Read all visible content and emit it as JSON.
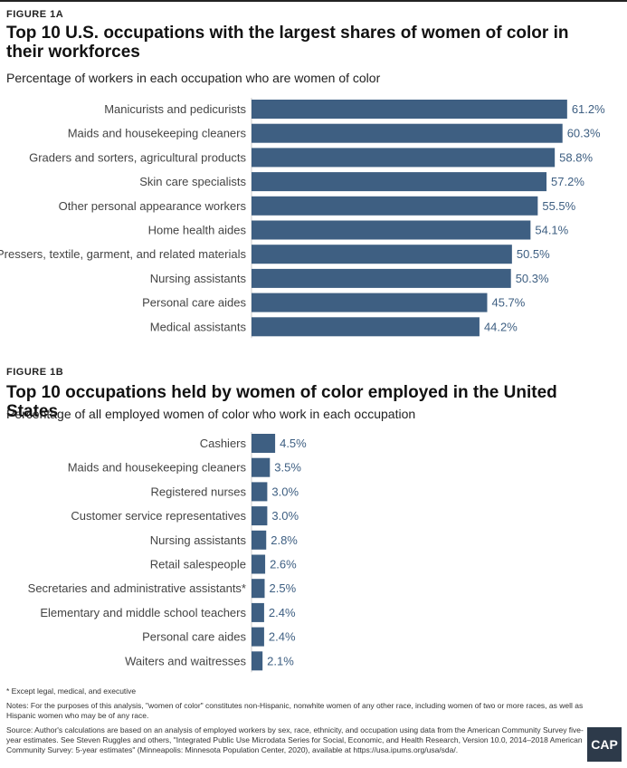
{
  "figures": [
    {
      "label": "FIGURE 1A",
      "title": "Top 10 U.S. occupations with the largest shares of women of color in their workforces",
      "subtitle": "Percentage of workers in each occupation who are women of color"
    },
    {
      "label": "FIGURE 1B",
      "title": "Top 10 occupations held by women of color employed in the United States",
      "subtitle": "Percentage of all employed women of color who work in each occupation"
    }
  ],
  "colors": {
    "bar": "#3e5f82",
    "value_text": "#3e5f82",
    "label_text": "#444444"
  },
  "chart_data": [
    {
      "type": "bar",
      "orientation": "horizontal",
      "title": "Top 10 U.S. occupations with the largest shares of women of color in their workforces",
      "categories": [
        "Manicurists and pedicurists",
        "Maids and housekeeping cleaners",
        "Graders and sorters, agricultural products",
        "Skin care specialists",
        "Other personal appearance workers",
        "Home health aides",
        "Pressers, textile, garment, and related materials",
        "Nursing assistants",
        "Personal care aides",
        "Medical assistants"
      ],
      "values": [
        61.2,
        60.3,
        58.8,
        57.2,
        55.5,
        54.1,
        50.5,
        50.3,
        45.7,
        44.2
      ],
      "labels": [
        "61.2%",
        "60.3%",
        "58.8%",
        "57.2%",
        "55.5%",
        "54.1%",
        "50.5%",
        "50.3%",
        "45.7%",
        "44.2%"
      ],
      "unit": "%"
    },
    {
      "type": "bar",
      "orientation": "horizontal",
      "title": "Top 10 occupations held by women of color employed in the United States",
      "categories": [
        "Cashiers",
        "Maids and housekeeping cleaners",
        "Registered nurses",
        "Customer service representatives",
        "Nursing assistants",
        "Retail salespeople",
        "Secretaries and administrative assistants*",
        "Elementary and middle school teachers",
        "Personal care aides",
        "Waiters and waitresses"
      ],
      "values": [
        4.5,
        3.5,
        3.0,
        3.0,
        2.8,
        2.6,
        2.5,
        2.4,
        2.4,
        2.1
      ],
      "labels": [
        "4.5%",
        "3.5%",
        "3.0%",
        "3.0%",
        "2.8%",
        "2.6%",
        "2.5%",
        "2.4%",
        "2.4%",
        "2.1%"
      ],
      "unit": "%"
    }
  ],
  "footnotes": {
    "asterisk": "* Except legal, medical, and executive",
    "notes": "Notes: For the purposes of this analysis, \"women of color\" constitutes non-Hispanic, nonwhite women of any other race, including women of two or more races, as well as Hispanic women who may be of any race.",
    "source": "Source: Author's calculations are based on an analysis of employed workers by sex, race, ethnicity, and occupation using data from the American Community Survey five-year estimates. See Steven Ruggles and others, \"Integrated Public Use Microdata Series for Social, Economic, and Health Research, Version 10.0, 2014–2018 American Community Survey: 5-year estimates\" (Minneapolis: Minnesota Population Center, 2020), available at https://usa.ipums.org/usa/sda/."
  },
  "logo": {
    "text": "CAP"
  }
}
